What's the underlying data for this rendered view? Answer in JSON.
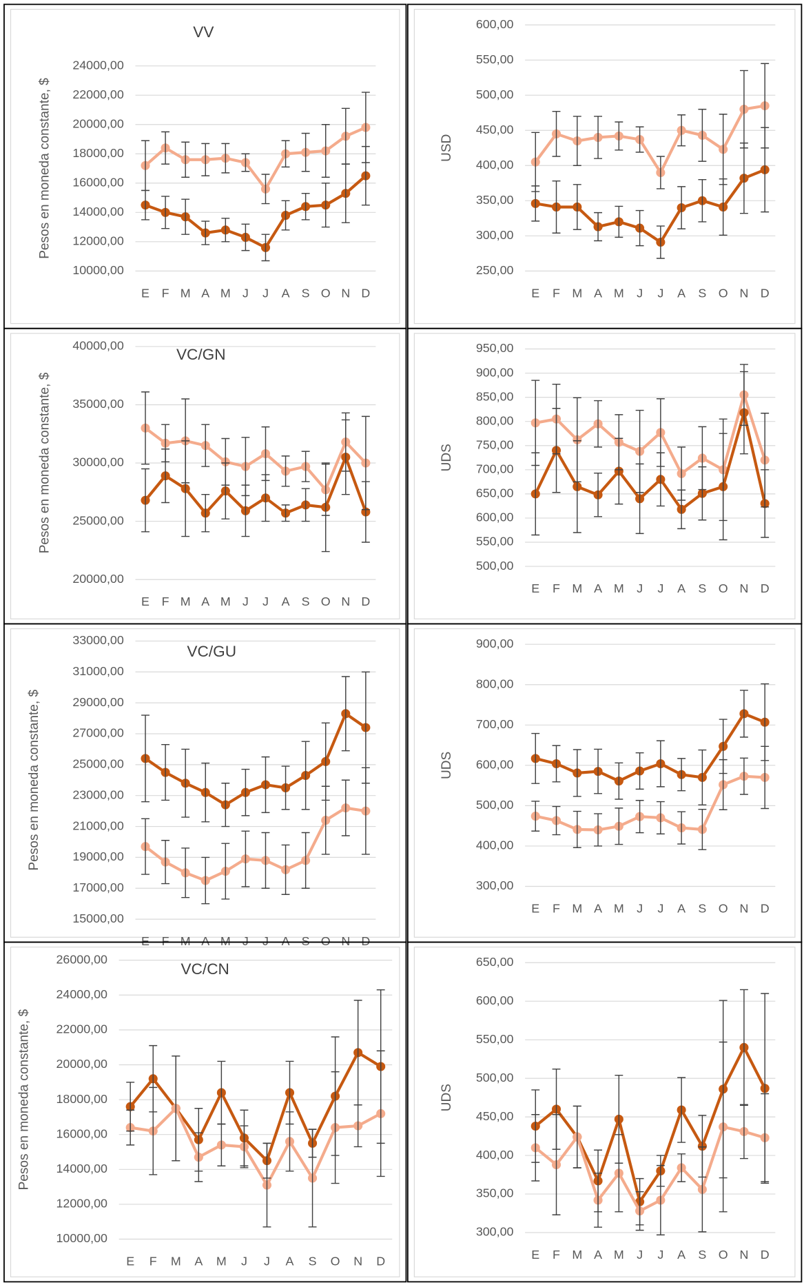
{
  "chart_data": [
    {
      "type": "line",
      "title": "VV",
      "y_label": "Pesos en moneda constante, $",
      "categories": [
        "E",
        "F",
        "M",
        "A",
        "M",
        "J",
        "J",
        "A",
        "S",
        "O",
        "N",
        "D"
      ],
      "ylim": [
        10000,
        24000
      ],
      "yticks": [
        {
          "value": 10000,
          "label": "10000,00"
        },
        {
          "value": 12000,
          "label": "12000,00"
        },
        {
          "value": 14000,
          "label": "14000,00"
        },
        {
          "value": 16000,
          "label": "16000,00"
        },
        {
          "value": 18000,
          "label": "18000,00"
        },
        {
          "value": 20000,
          "label": "20000,00"
        },
        {
          "value": 22000,
          "label": "22000,00"
        },
        {
          "value": 24000,
          "label": "24000,00"
        }
      ],
      "grid": true,
      "series": [
        {
          "color": "#f4ab8c",
          "values": [
            17200,
            18400,
            17600,
            17600,
            17700,
            17400,
            15600,
            18000,
            18100,
            18200,
            19200,
            19800
          ],
          "errors": [
            1700,
            1100,
            1200,
            1100,
            1000,
            600,
            1000,
            900,
            1300,
            1800,
            1900,
            2400
          ]
        },
        {
          "color": "#c65911",
          "values": [
            14500,
            14000,
            13700,
            12600,
            12800,
            12300,
            11600,
            13800,
            14400,
            14500,
            15300,
            16500
          ],
          "errors": [
            1000,
            1100,
            1200,
            800,
            800,
            900,
            900,
            1000,
            900,
            1500,
            2000,
            2000
          ]
        }
      ]
    },
    {
      "type": "line",
      "y_label": "USD",
      "categories": [
        "E",
        "F",
        "M",
        "A",
        "M",
        "J",
        "J",
        "A",
        "S",
        "O",
        "N",
        "D"
      ],
      "ylim": [
        250,
        600
      ],
      "yticks": [
        {
          "value": 250,
          "label": "250,00"
        },
        {
          "value": 300,
          "label": "300,00"
        },
        {
          "value": 350,
          "label": "350,00"
        },
        {
          "value": 400,
          "label": "400,00"
        },
        {
          "value": 450,
          "label": "450,00"
        },
        {
          "value": 500,
          "label": "500,00"
        },
        {
          "value": 550,
          "label": "550,00"
        },
        {
          "value": 600,
          "label": "600,00"
        }
      ],
      "grid": true,
      "series": [
        {
          "color": "#f4ab8c",
          "values": [
            405,
            445,
            435,
            440,
            442,
            437,
            390,
            450,
            443,
            423,
            480,
            485
          ],
          "errors": [
            42,
            32,
            35,
            30,
            20,
            18,
            23,
            22,
            37,
            50,
            55,
            60
          ]
        },
        {
          "color": "#c65911",
          "values": [
            346,
            341,
            341,
            313,
            320,
            311,
            291,
            340,
            350,
            341,
            382,
            394
          ],
          "errors": [
            25,
            37,
            32,
            20,
            22,
            25,
            23,
            30,
            30,
            40,
            50,
            60
          ]
        }
      ]
    },
    {
      "type": "line",
      "title": "VC/GN",
      "y_label": "Pesos en moneda constante, $",
      "categories": [
        "E",
        "F",
        "M",
        "A",
        "M",
        "J",
        "J",
        "A",
        "S",
        "O",
        "N",
        "D"
      ],
      "ylim": [
        20000,
        40000
      ],
      "yticks": [
        {
          "value": 20000,
          "label": "20000,00"
        },
        {
          "value": 25000,
          "label": "25000,00"
        },
        {
          "value": 30000,
          "label": "30000,00"
        },
        {
          "value": 35000,
          "label": "35000,00"
        },
        {
          "value": 40000,
          "label": "40000,00"
        }
      ],
      "grid": true,
      "series": [
        {
          "color": "#f4ab8c",
          "values": [
            33000,
            31700,
            31900,
            31500,
            30100,
            29700,
            30800,
            29300,
            29700,
            27700,
            31800,
            30000
          ],
          "errors": [
            3100,
            1600,
            3600,
            1800,
            2000,
            2500,
            2300,
            1300,
            1300,
            2200,
            2500,
            4000
          ]
        },
        {
          "color": "#c65911",
          "values": [
            26800,
            28900,
            27800,
            25700,
            27600,
            25900,
            27000,
            25700,
            26400,
            26200,
            30500,
            25800
          ],
          "errors": [
            2700,
            2300,
            4100,
            1600,
            2400,
            2200,
            2000,
            700,
            1400,
            3800,
            3200,
            2600
          ]
        }
      ]
    },
    {
      "type": "line",
      "y_label": "UDS",
      "categories": [
        "E",
        "F",
        "M",
        "A",
        "M",
        "J",
        "J",
        "A",
        "S",
        "O",
        "N",
        "D"
      ],
      "ylim": [
        500,
        950
      ],
      "yticks": [
        {
          "value": 500,
          "label": "500,00"
        },
        {
          "value": 550,
          "label": "550,00"
        },
        {
          "value": 600,
          "label": "600,00"
        },
        {
          "value": 650,
          "label": "650,00"
        },
        {
          "value": 700,
          "label": "700,00"
        },
        {
          "value": 750,
          "label": "750,00"
        },
        {
          "value": 800,
          "label": "800,00"
        },
        {
          "value": 850,
          "label": "850,00"
        },
        {
          "value": 900,
          "label": "900,00"
        },
        {
          "value": 950,
          "label": "950,00"
        }
      ],
      "grid": true,
      "series": [
        {
          "color": "#f4ab8c",
          "values": [
            797,
            805,
            762,
            795,
            757,
            738,
            777,
            692,
            724,
            700,
            855,
            720
          ],
          "errors": [
            88,
            72,
            87,
            48,
            57,
            85,
            70,
            55,
            65,
            105,
            63,
            97
          ]
        },
        {
          "color": "#c65911",
          "values": [
            650,
            740,
            665,
            648,
            697,
            640,
            680,
            618,
            651,
            665,
            818,
            630
          ],
          "errors": [
            85,
            87,
            95,
            45,
            68,
            72,
            55,
            40,
            55,
            110,
            85,
            70
          ]
        }
      ]
    },
    {
      "type": "line",
      "title": "VC/GU",
      "y_label": "Pesos en moneda constante, $",
      "categories": [
        "E",
        "F",
        "M",
        "A",
        "M",
        "J",
        "J",
        "A",
        "S",
        "O",
        "N",
        "D"
      ],
      "ylim": [
        15000,
        33000
      ],
      "yticks": [
        {
          "value": 15000,
          "label": "15000,00"
        },
        {
          "value": 17000,
          "label": "17000,00"
        },
        {
          "value": 19000,
          "label": "19000,00"
        },
        {
          "value": 21000,
          "label": "21000,00"
        },
        {
          "value": 23000,
          "label": "23000,00"
        },
        {
          "value": 25000,
          "label": "25000,00"
        },
        {
          "value": 27000,
          "label": "27000,00"
        },
        {
          "value": 29000,
          "label": "29000,00"
        },
        {
          "value": 31000,
          "label": "31000,00"
        },
        {
          "value": 33000,
          "label": "33000,00"
        }
      ],
      "grid": true,
      "series": [
        {
          "color": "#c65911",
          "values": [
            25400,
            24500,
            23800,
            23200,
            22400,
            23200,
            23700,
            23500,
            24300,
            25200,
            28300,
            27400
          ],
          "errors": [
            2800,
            1800,
            2200,
            1900,
            1400,
            1500,
            1800,
            1400,
            2200,
            2500,
            2400,
            3600
          ]
        },
        {
          "color": "#f4ab8c",
          "values": [
            19700,
            18700,
            18000,
            17500,
            18100,
            18900,
            18800,
            18200,
            18800,
            21400,
            22200,
            22000
          ],
          "errors": [
            1800,
            1400,
            1600,
            1500,
            1800,
            1800,
            1800,
            1600,
            1800,
            2200,
            1800,
            2800
          ]
        }
      ]
    },
    {
      "type": "line",
      "y_label": "UDS",
      "categories": [
        "E",
        "F",
        "M",
        "A",
        "M",
        "J",
        "J",
        "A",
        "S",
        "O",
        "N",
        "D"
      ],
      "ylim": [
        300,
        900
      ],
      "yticks": [
        {
          "value": 300,
          "label": "300,00"
        },
        {
          "value": 400,
          "label": "400,00"
        },
        {
          "value": 500,
          "label": "500,00"
        },
        {
          "value": 600,
          "label": "600,00"
        },
        {
          "value": 700,
          "label": "700,00"
        },
        {
          "value": 800,
          "label": "800,00"
        },
        {
          "value": 900,
          "label": "900,00"
        }
      ],
      "grid": true,
      "series": [
        {
          "color": "#c65911",
          "values": [
            617,
            604,
            581,
            585,
            561,
            586,
            604,
            577,
            570,
            647,
            728,
            707
          ],
          "errors": [
            62,
            45,
            58,
            55,
            45,
            45,
            57,
            40,
            68,
            67,
            58,
            95
          ]
        },
        {
          "color": "#f4ab8c",
          "values": [
            474,
            463,
            441,
            440,
            449,
            473,
            470,
            445,
            441,
            552,
            573,
            570
          ],
          "errors": [
            37,
            35,
            45,
            40,
            45,
            40,
            40,
            40,
            50,
            62,
            45,
            77
          ]
        }
      ]
    },
    {
      "type": "line",
      "title": "VC/CN",
      "y_label": "Pesos en moneda constante, $",
      "categories": [
        "E",
        "F",
        "M",
        "A",
        "M",
        "J",
        "J",
        "A",
        "S",
        "O",
        "N",
        "D"
      ],
      "ylim": [
        10000,
        26000
      ],
      "yticks": [
        {
          "value": 10000,
          "label": "10000,00"
        },
        {
          "value": 12000,
          "label": "12000,00"
        },
        {
          "value": 14000,
          "label": "14000,00"
        },
        {
          "value": 16000,
          "label": "16000,00"
        },
        {
          "value": 18000,
          "label": "18000,00"
        },
        {
          "value": 20000,
          "label": "20000,00"
        },
        {
          "value": 22000,
          "label": "22000,00"
        },
        {
          "value": 24000,
          "label": "24000,00"
        },
        {
          "value": 26000,
          "label": "26000,00"
        }
      ],
      "grid": true,
      "series": [
        {
          "color": "#c65911",
          "values": [
            17600,
            19200,
            17500,
            15700,
            18400,
            15800,
            14500,
            18400,
            15500,
            18200,
            20700,
            19900
          ],
          "errors": [
            1400,
            1900,
            3000,
            1800,
            1800,
            1600,
            1000,
            1800,
            800,
            3400,
            3000,
            4400
          ]
        },
        {
          "color": "#f4ab8c",
          "values": [
            16400,
            16200,
            17500,
            14700,
            15400,
            15300,
            13100,
            15600,
            13500,
            16400,
            16500,
            17200
          ],
          "errors": [
            1000,
            2500,
            3000,
            1400,
            1200,
            1200,
            2400,
            1700,
            2800,
            3200,
            1200,
            3600
          ]
        }
      ]
    },
    {
      "type": "line",
      "y_label": "UDS",
      "categories": [
        "E",
        "F",
        "M",
        "A",
        "M",
        "J",
        "J",
        "A",
        "S",
        "O",
        "N",
        "D"
      ],
      "ylim": [
        300,
        650
      ],
      "yticks": [
        {
          "value": 300,
          "label": "300,00"
        },
        {
          "value": 350,
          "label": "350,00"
        },
        {
          "value": 400,
          "label": "400,00"
        },
        {
          "value": 450,
          "label": "450,00"
        },
        {
          "value": 500,
          "label": "500,00"
        },
        {
          "value": 550,
          "label": "550,00"
        },
        {
          "value": 600,
          "label": "600,00"
        },
        {
          "value": 650,
          "label": "650,00"
        }
      ],
      "grid": true,
      "series": [
        {
          "color": "#c65911",
          "values": [
            438,
            460,
            424,
            367,
            447,
            340,
            380,
            459,
            412,
            486,
            540,
            487
          ],
          "errors": [
            47,
            52,
            40,
            40,
            57,
            30,
            20,
            42,
            40,
            115,
            75,
            123
          ]
        },
        {
          "color": "#f4ab8c",
          "values": [
            410,
            388,
            424,
            342,
            377,
            328,
            342,
            384,
            356,
            437,
            431,
            423
          ],
          "errors": [
            43,
            65,
            40,
            35,
            50,
            25,
            45,
            18,
            55,
            110,
            35,
            57
          ]
        }
      ]
    }
  ]
}
